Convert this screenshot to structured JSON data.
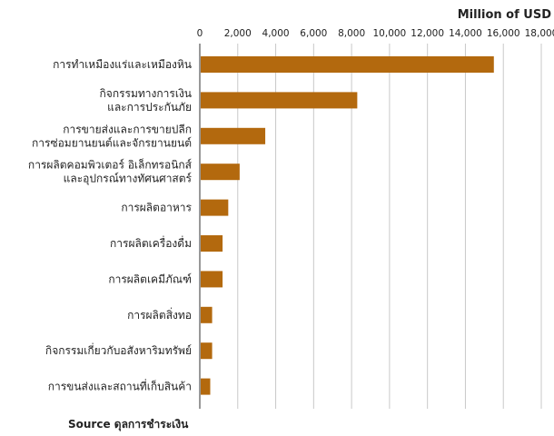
{
  "chart_data": {
    "type": "bar",
    "orientation": "horizontal",
    "unit_label": "Million of USD",
    "xlim": [
      0,
      18000
    ],
    "ticks": [
      "0",
      "2,000",
      "4,000",
      "6,000",
      "8,000",
      "10,000",
      "12,000",
      "14,000",
      "16,000",
      "18,000"
    ],
    "tick_values": [
      0,
      2000,
      4000,
      6000,
      8000,
      10000,
      12000,
      14000,
      16000,
      18000
    ],
    "grid": true,
    "bar_color": "#b3690e",
    "categories": [
      [
        "การทำเหมืองแร่และเหมืองหิน"
      ],
      [
        "กิจกรรมทางการเงิน",
        "และการประกันภัย"
      ],
      [
        "การขายส่งและการขายปลีก",
        "การซ่อมยานยนต์และจักรยานยนต์"
      ],
      [
        "การผลิตคอมพิวเตอร์ อิเล็กทรอนิกส์",
        "และอุปกรณ์ทางทัศนศาสตร์"
      ],
      [
        "การผลิตอาหาร"
      ],
      [
        "การผลิตเครื่องดื่ม"
      ],
      [
        "การผลิตเคมีภัณฑ์"
      ],
      [
        "การผลิตสิ่งทอ"
      ],
      [
        "กิจกรรมเกี่ยวกับอสังหาริมทรัพย์"
      ],
      [
        "การขนส่งและสถานที่เก็บสินค้า"
      ]
    ],
    "values": [
      15500,
      8300,
      3450,
      2100,
      1500,
      1200,
      1200,
      650,
      650,
      550
    ]
  },
  "source": "Source ดุลการชำระเงิน"
}
